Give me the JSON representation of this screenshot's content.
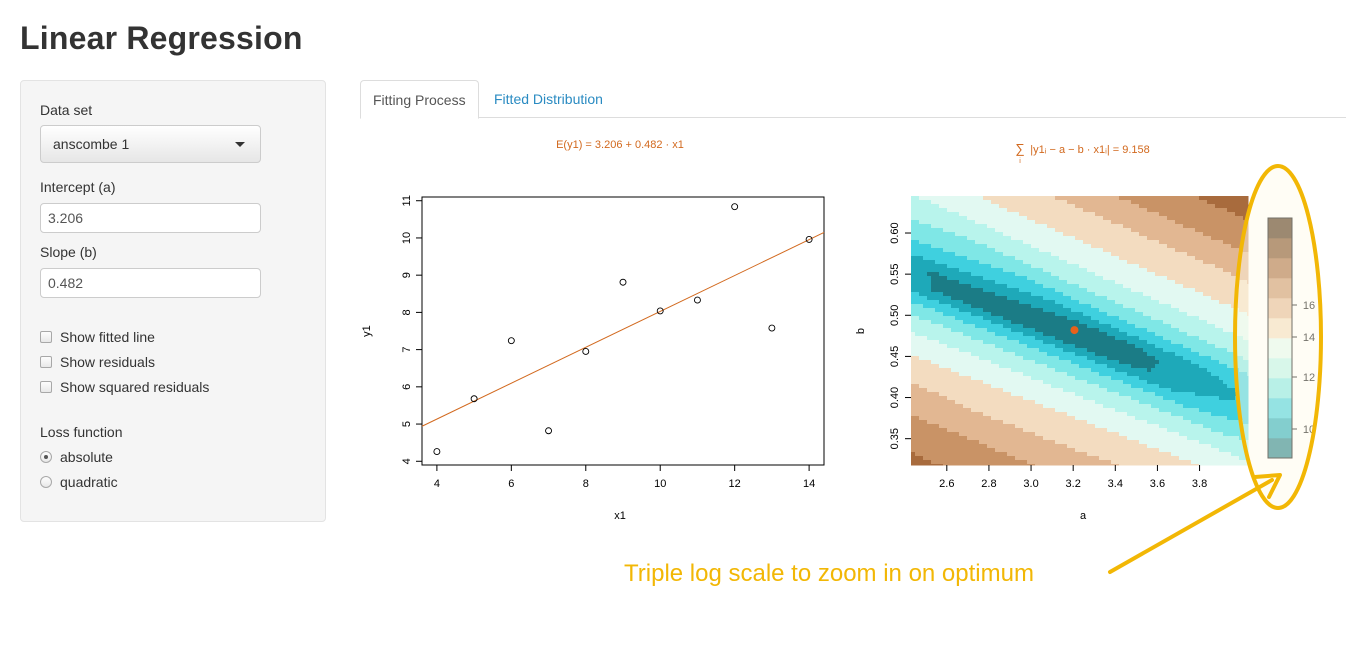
{
  "app": {
    "title": "Linear Regression"
  },
  "sidebar": {
    "dataset_label": "Data set",
    "dataset_value": "anscombe 1",
    "intercept_label": "Intercept (a)",
    "intercept_value": "3.206",
    "slope_label": "Slope (b)",
    "slope_value": "0.482",
    "checkboxes": [
      {
        "label": "Show fitted line",
        "checked": false
      },
      {
        "label": "Show residuals",
        "checked": false
      },
      {
        "label": "Show squared residuals",
        "checked": false
      }
    ],
    "loss_label": "Loss function",
    "loss_options": [
      {
        "label": "absolute",
        "selected": true
      },
      {
        "label": "quadratic",
        "selected": false
      }
    ]
  },
  "tabs": [
    {
      "label": "Fitting Process",
      "active": true
    },
    {
      "label": "Fitted Distribution",
      "active": false
    }
  ],
  "colors": {
    "fit_line": "#d2691e",
    "annotation": "#f2b705",
    "optimum_point": "#e8611a",
    "link": "#2a8bc2"
  },
  "annotation": {
    "text": "Triple log scale to zoom in on optimum"
  },
  "chart_data": [
    {
      "type": "scatter",
      "title": "E(y1) = 3.206 + 0.482 · x1",
      "xlabel": "x1",
      "ylabel": "y1",
      "xlim": [
        3.6,
        14.4
      ],
      "ylim": [
        3.9,
        11.1
      ],
      "xticks": [
        4,
        6,
        8,
        10,
        12,
        14
      ],
      "yticks": [
        4,
        5,
        6,
        7,
        8,
        9,
        10,
        11
      ],
      "points": [
        {
          "x": 10,
          "y": 8.04
        },
        {
          "x": 8,
          "y": 6.95
        },
        {
          "x": 13,
          "y": 7.58
        },
        {
          "x": 9,
          "y": 8.81
        },
        {
          "x": 11,
          "y": 8.33
        },
        {
          "x": 14,
          "y": 9.96
        },
        {
          "x": 6,
          "y": 7.24
        },
        {
          "x": 4,
          "y": 4.26
        },
        {
          "x": 12,
          "y": 10.84
        },
        {
          "x": 7,
          "y": 4.82
        },
        {
          "x": 5,
          "y": 5.68
        }
      ],
      "line": {
        "intercept": 3.206,
        "slope": 0.482
      }
    },
    {
      "type": "heatmap",
      "title": "∑ |y1ᵢ − a − b · x1ᵢ| = 9.158",
      "title_subscript": "i",
      "xlabel": "a",
      "ylabel": "b",
      "xlim": [
        2.43,
        4.03
      ],
      "ylim": [
        0.318,
        0.645
      ],
      "xticks": [
        "2.6",
        "2.8",
        "3.0",
        "3.2",
        "3.4",
        "3.6",
        "3.8"
      ],
      "yticks": [
        "0.35",
        "0.40",
        "0.45",
        "0.50",
        "0.55",
        "0.60"
      ],
      "optimum": {
        "a": 3.206,
        "b": 0.482
      },
      "legend_ticks": [
        "10",
        "12",
        "14",
        "16"
      ],
      "legend_colors": [
        "#1b7c86",
        "#1ea9b9",
        "#3fd0df",
        "#7fe7e6",
        "#b8f4ec",
        "#e2f9f2",
        "#f3dcc0",
        "#e2b792",
        "#c99366",
        "#a86b3d",
        "#7c4a1f",
        "#4b2d0f"
      ]
    }
  ]
}
